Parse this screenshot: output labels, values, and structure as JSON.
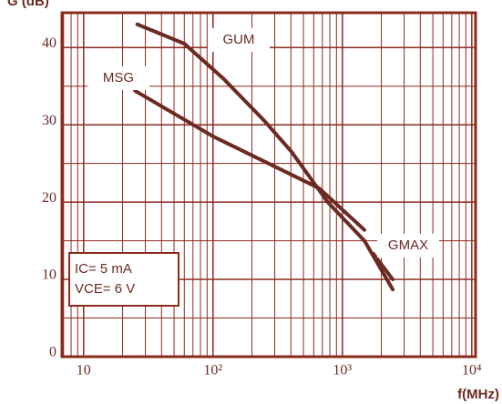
{
  "chart_data": {
    "type": "line",
    "y_label": "G (dB)",
    "x_label": "f(MHz)",
    "x_log": true,
    "xlim": [
      6.8,
      10700
    ],
    "xticks": [
      10,
      {
        "value": 100,
        "label": "10²"
      },
      {
        "value": 1000,
        "label": "10³"
      },
      {
        "value": 10000,
        "label": "10⁴"
      }
    ],
    "ylim": [
      0,
      44.5
    ],
    "yticks": [
      0,
      10,
      20,
      30,
      40
    ],
    "minor_yticks": [
      5,
      15,
      25,
      35
    ],
    "grid": true,
    "grid_color": "#8b2a1e",
    "series": [
      {
        "name": "GUM",
        "color": "#6b2a22",
        "x": [
          26,
          60,
          120,
          250,
          405,
          770,
          1480,
          2450
        ],
        "values": [
          43,
          40.5,
          36,
          30.5,
          26.5,
          20,
          15,
          8.7
        ]
      },
      {
        "name": "MSG",
        "color": "#6b2a22",
        "x": [
          25,
          100,
          660,
          1480
        ],
        "values": [
          34.4,
          28.5,
          21.8,
          16.4
        ]
      },
      {
        "name": "GMAX",
        "color": "#6b2a22",
        "x": [
          1740,
          2450
        ],
        "values": [
          13.3,
          10
        ]
      }
    ],
    "annotations": [
      "IC= 5 mA",
      "VCE= 6 V"
    ]
  }
}
